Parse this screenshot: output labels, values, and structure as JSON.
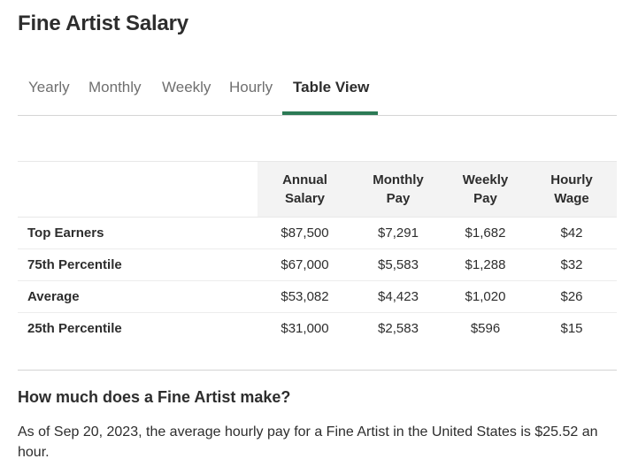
{
  "page": {
    "title": "Fine Artist Salary"
  },
  "tabs": [
    {
      "label": "Yearly",
      "active": false
    },
    {
      "label": "Monthly",
      "active": false
    },
    {
      "label": "Weekly",
      "active": false
    },
    {
      "label": "Hourly",
      "active": false
    },
    {
      "label": "Table View",
      "active": true
    }
  ],
  "table": {
    "columns": [
      {
        "line1": "Annual",
        "line2": "Salary"
      },
      {
        "line1": "Monthly",
        "line2": "Pay"
      },
      {
        "line1": "Weekly",
        "line2": "Pay"
      },
      {
        "line1": "Hourly",
        "line2": "Wage"
      }
    ],
    "rows": [
      {
        "label": "Top Earners",
        "annual": "$87,500",
        "monthly": "$7,291",
        "weekly": "$1,682",
        "hourly": "$42"
      },
      {
        "label": "75th Percentile",
        "annual": "$67,000",
        "monthly": "$5,583",
        "weekly": "$1,288",
        "hourly": "$32"
      },
      {
        "label": "Average",
        "annual": "$53,082",
        "monthly": "$4,423",
        "weekly": "$1,020",
        "hourly": "$26"
      },
      {
        "label": "25th Percentile",
        "annual": "$31,000",
        "monthly": "$2,583",
        "weekly": "$596",
        "hourly": "$15"
      }
    ]
  },
  "faq": {
    "question": "How much does a Fine Artist make?",
    "answer": "As of Sep 20, 2023, the average hourly pay for a Fine Artist in the United States is $25.52 an hour."
  },
  "colors": {
    "accent": "#2c7a55",
    "text": "#2d2d2d",
    "muted_text": "#6f6f6f",
    "header_shade": "#f3f3f3",
    "divider": "#d4d4d4"
  }
}
